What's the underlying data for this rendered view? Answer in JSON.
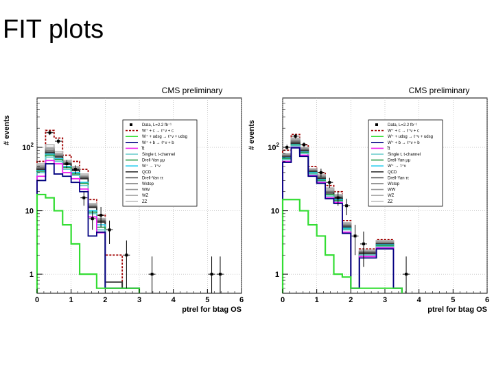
{
  "slide": {
    "title": "FIT plots"
  },
  "legend_entries": [
    {
      "label": "Data, L=2.2 fb⁻¹",
      "color": "#000000",
      "style": "marker"
    },
    {
      "label": "W⁺ + c → ℓ⁺ν + c",
      "color": "#a00000",
      "style": "dashed"
    },
    {
      "label": "W⁺ + udsg → ℓ⁺ν + udsg",
      "color": "#33dd33",
      "style": "solid"
    },
    {
      "label": "W⁺ + b → ℓ⁺ν + b",
      "color": "#000080",
      "style": "solid"
    },
    {
      "label": "t̅t",
      "color": "#ee22ee",
      "style": "solid"
    },
    {
      "label": "Single t, t-channel",
      "color": "#66cccc",
      "style": "solid"
    },
    {
      "label": "Drell-Yan μμ",
      "color": "#2a9d4a",
      "style": "solid"
    },
    {
      "label": "W⁺ → τ⁺ν",
      "color": "#22ccee",
      "style": "solid"
    },
    {
      "label": "QCD",
      "color": "#333333",
      "style": "solid"
    },
    {
      "label": "Drell-Yan ττ",
      "color": "#555555",
      "style": "solid"
    },
    {
      "label": "Wstop",
      "color": "#777777",
      "style": "solid"
    },
    {
      "label": "WW",
      "color": "#999999",
      "style": "solid"
    },
    {
      "label": "WZ",
      "color": "#aaaaaa",
      "style": "solid"
    },
    {
      "label": "ZZ",
      "color": "#bbbbbb",
      "style": "solid"
    }
  ],
  "chart_data": [
    {
      "type": "line",
      "title": "CMS preliminary",
      "xlabel": "ptrel for btag OS",
      "ylabel": "# events",
      "xlim": [
        0,
        6
      ],
      "ylim": [
        0.5,
        600
      ],
      "yscale": "log",
      "xticks": [
        "0",
        "1",
        "2",
        "3",
        "4",
        "5",
        "6"
      ],
      "yticks": [
        {
          "value": 1,
          "label": "1"
        },
        {
          "value": 10,
          "label": "10"
        },
        {
          "value": 100,
          "label": "10",
          "sup": "2"
        }
      ],
      "bin_edges": [
        0,
        0.25,
        0.5,
        0.75,
        1,
        1.25,
        1.5,
        1.75,
        2,
        2.25,
        2.5,
        2.75,
        3
      ],
      "series": [
        {
          "name": "W+c",
          "color": "#a00000",
          "dash": true,
          "values": [
            60,
            185,
            140,
            75,
            60,
            45,
            15,
            8.5,
            2,
            2,
            0.6,
            0.6
          ]
        },
        {
          "name": "ZZ",
          "color": "#bbbbbb",
          "values": [
            55,
            110,
            85,
            62,
            50,
            38,
            13,
            7.6,
            0.6,
            0.6,
            0.6,
            0.6
          ]
        },
        {
          "name": "WZ",
          "color": "#aaaaaa",
          "values": [
            52,
            100,
            80,
            60,
            48,
            36,
            12.6,
            7.4,
            0.6,
            0.6,
            0.6,
            0.6
          ]
        },
        {
          "name": "WW",
          "color": "#999999",
          "values": [
            50,
            95,
            77,
            58,
            46,
            35,
            12.2,
            7.2,
            0.6,
            0.6,
            0.6,
            0.6
          ]
        },
        {
          "name": "Wstop",
          "color": "#777777",
          "values": [
            48,
            90,
            74,
            56,
            45,
            34,
            11.8,
            7,
            0.6,
            0.6,
            0.6,
            0.6
          ]
        },
        {
          "name": "DY tautau",
          "color": "#555555",
          "values": [
            46,
            85,
            72,
            55,
            44,
            33,
            11.5,
            6.8,
            0.75,
            0.75,
            0.6,
            0.6
          ]
        },
        {
          "name": "QCD",
          "color": "#333333",
          "values": [
            45,
            82,
            70,
            54,
            43,
            32,
            11.2,
            6.6,
            0.75,
            0.75,
            0.6,
            0.6
          ]
        },
        {
          "name": "W->tau nu",
          "color": "#22ccee",
          "values": [
            43,
            78,
            66,
            50,
            40,
            28,
            10,
            6,
            0.6,
            0.6,
            0.6,
            0.6
          ]
        },
        {
          "name": "DY mumu",
          "color": "#2a9d4a",
          "values": [
            42,
            75,
            64,
            48,
            38,
            27,
            9.5,
            5.5,
            0.6,
            0.6,
            0.6,
            0.6
          ]
        },
        {
          "name": "Single t",
          "color": "#66cccc",
          "values": [
            40,
            70,
            60,
            45,
            36,
            25,
            9,
            5,
            0.6,
            0.6,
            0.6,
            0.6
          ]
        },
        {
          "name": "ttbar",
          "color": "#ee22ee",
          "values": [
            35,
            62,
            55,
            40,
            32,
            22,
            8,
            4.5,
            0.6,
            0.6,
            0.6,
            0.6
          ]
        },
        {
          "name": "W+b",
          "color": "#000080",
          "values": [
            30,
            55,
            38,
            35,
            28,
            20,
            4,
            4.6,
            0.6,
            0.6,
            0.6,
            0.6
          ]
        },
        {
          "name": "W+udsg",
          "color": "#33dd33",
          "values": [
            18,
            16,
            10,
            6,
            3,
            1,
            1,
            0.6,
            0.6,
            0.6,
            0.6,
            0.6
          ]
        }
      ],
      "data_points": [
        {
          "x": 0.375,
          "y": 170,
          "err": 14
        },
        {
          "x": 0.625,
          "y": 125,
          "err": 11
        },
        {
          "x": 0.875,
          "y": 55,
          "err": 8
        },
        {
          "x": 1.125,
          "y": 45,
          "err": 7
        },
        {
          "x": 1.375,
          "y": 16,
          "err": 4
        },
        {
          "x": 1.625,
          "y": 7.5,
          "err": 2.5
        },
        {
          "x": 1.875,
          "y": 8.5,
          "err": 3
        },
        {
          "x": 2.125,
          "y": 5,
          "err": 2
        },
        {
          "x": 2.625,
          "y": 2,
          "err": 1.4
        },
        {
          "x": 3.375,
          "y": 1,
          "err": 0.9
        },
        {
          "x": 5.125,
          "y": 1,
          "err": 0.9
        },
        {
          "x": 5.375,
          "y": 1,
          "err": 0.9
        }
      ]
    },
    {
      "type": "line",
      "title": "CMS preliminary",
      "xlabel": "ptrel for btag OS",
      "ylabel": "# events",
      "xlim": [
        0,
        6
      ],
      "ylim": [
        0.5,
        600
      ],
      "yscale": "log",
      "xticks": [
        "0",
        "1",
        "2",
        "3",
        "4",
        "5",
        "6"
      ],
      "yticks": [
        {
          "value": 1,
          "label": "1"
        },
        {
          "value": 10,
          "label": "10"
        },
        {
          "value": 100,
          "label": "10",
          "sup": "2"
        }
      ],
      "bin_edges": [
        0,
        0.25,
        0.5,
        0.75,
        1,
        1.25,
        1.5,
        1.75,
        2,
        2.25,
        2.5,
        2.75,
        3,
        3.25,
        3.5
      ],
      "series": [
        {
          "name": "W+c",
          "color": "#a00000",
          "dash": true,
          "values": [
            90,
            160,
            110,
            50,
            40,
            25,
            20,
            7,
            0.6,
            2.5,
            2.5,
            3.5,
            3.5,
            0.6
          ]
        },
        {
          "name": "ZZ",
          "color": "#bbbbbb",
          "values": [
            80,
            140,
            100,
            46,
            37,
            23,
            18,
            6.5,
            0.6,
            2.4,
            2.4,
            3.4,
            3.4,
            0.6
          ]
        },
        {
          "name": "WZ",
          "color": "#aaaaaa",
          "values": [
            78,
            135,
            98,
            45,
            36,
            22,
            17.5,
            6.3,
            0.6,
            2.3,
            2.3,
            3.3,
            3.3,
            0.6
          ]
        },
        {
          "name": "WW",
          "color": "#999999",
          "values": [
            76,
            130,
            95,
            44,
            35,
            21,
            17,
            6.1,
            0.6,
            2.3,
            2.3,
            3.2,
            3.2,
            0.6
          ]
        },
        {
          "name": "Wstop",
          "color": "#777777",
          "values": [
            74,
            125,
            92,
            43,
            34,
            20,
            16.5,
            5.9,
            0.6,
            2.2,
            2.2,
            3.1,
            3.1,
            0.6
          ]
        },
        {
          "name": "DY tautau",
          "color": "#555555",
          "values": [
            72,
            120,
            90,
            42,
            33,
            19,
            16,
            5.7,
            0.6,
            2.2,
            2.2,
            3,
            3,
            0.6
          ]
        },
        {
          "name": "QCD",
          "color": "#333333",
          "values": [
            70,
            115,
            88,
            41,
            32,
            19,
            15.5,
            5.5,
            0.6,
            2.1,
            2.1,
            3,
            3,
            0.6
          ]
        },
        {
          "name": "W->tau nu",
          "color": "#22ccee",
          "values": [
            68,
            110,
            84,
            40,
            31,
            18,
            15,
            5.3,
            0.6,
            2,
            2,
            2.9,
            2.9,
            0.6
          ]
        },
        {
          "name": "DY mumu",
          "color": "#2a9d4a",
          "values": [
            66,
            108,
            82,
            39,
            30,
            18,
            14.5,
            5.1,
            0.6,
            2,
            2,
            2.8,
            2.8,
            0.6
          ]
        },
        {
          "name": "Single t",
          "color": "#66cccc",
          "values": [
            64,
            105,
            80,
            38,
            29,
            17,
            14,
            5,
            0.6,
            2,
            2,
            2.7,
            2.7,
            0.6
          ]
        },
        {
          "name": "ttbar",
          "color": "#ee22ee",
          "values": [
            60,
            100,
            75,
            36,
            28,
            16,
            13.5,
            4.6,
            0.6,
            1.9,
            1.9,
            2.6,
            2.6,
            0.6
          ]
        },
        {
          "name": "W+b",
          "color": "#000080",
          "values": [
            58,
            98,
            72,
            35,
            27,
            15.5,
            13,
            4.4,
            0.6,
            1.8,
            1.8,
            2.5,
            2.5,
            0.6
          ]
        },
        {
          "name": "W+udsg",
          "color": "#33dd33",
          "values": [
            15,
            15,
            10,
            6,
            4,
            2,
            1,
            0.9,
            0.6,
            0.6,
            0.6,
            0.6,
            0.6,
            0.6
          ]
        }
      ],
      "data_points": [
        {
          "x": 0.125,
          "y": 100,
          "err": 10
        },
        {
          "x": 0.375,
          "y": 150,
          "err": 12
        },
        {
          "x": 0.625,
          "y": 110,
          "err": 10
        },
        {
          "x": 1.125,
          "y": 40,
          "err": 6
        },
        {
          "x": 1.375,
          "y": 28,
          "err": 5
        },
        {
          "x": 1.625,
          "y": 16,
          "err": 4
        },
        {
          "x": 1.875,
          "y": 12,
          "err": 3.5
        },
        {
          "x": 2.125,
          "y": 4,
          "err": 2
        },
        {
          "x": 2.375,
          "y": 3,
          "err": 1.7
        },
        {
          "x": 3.625,
          "y": 1,
          "err": 0.9
        }
      ]
    }
  ]
}
